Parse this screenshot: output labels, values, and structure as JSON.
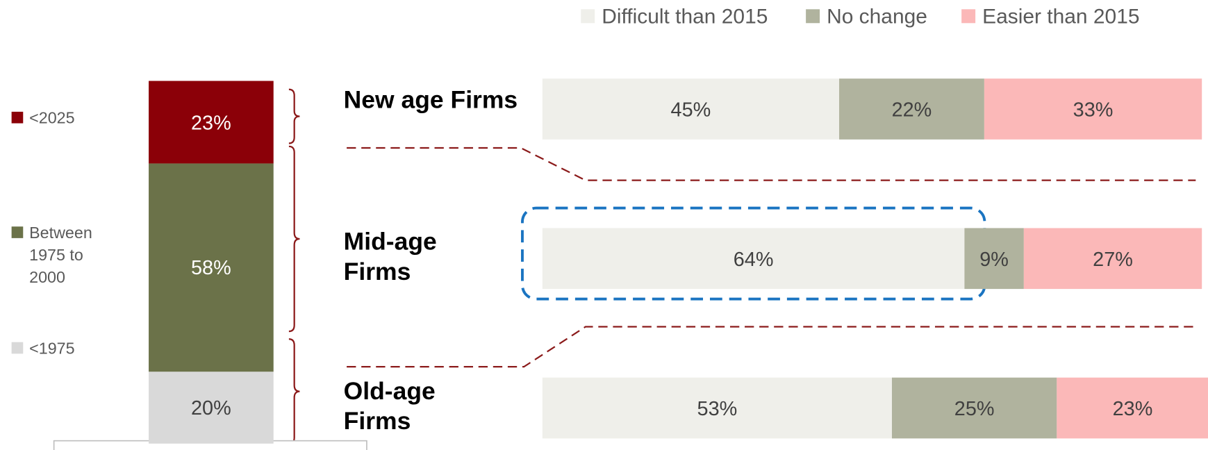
{
  "chart_data": [
    {
      "type": "stacked-column",
      "series": [
        {
          "name": "<2025",
          "color": "#8b0008",
          "values": [
            23
          ],
          "value_labels": [
            "23%"
          ]
        },
        {
          "name": "Between 1975 to 2000",
          "color": "#6b7249",
          "values": [
            58
          ],
          "value_labels": [
            "58%"
          ]
        },
        {
          "name": "<1975",
          "color": "#d9d9d9",
          "values": [
            20
          ],
          "value_labels": [
            "20%"
          ]
        }
      ]
    },
    {
      "type": "stacked-bar-h",
      "categories": [
        "New age Firms",
        "Mid-age Firms",
        "Old-age Firms"
      ],
      "series": [
        {
          "name": "Difficult than 2015",
          "color": "#efefea",
          "values": [
            45,
            64,
            53
          ],
          "value_labels": [
            "45%",
            "64%",
            "53%"
          ]
        },
        {
          "name": "No change",
          "color": "#b0b39e",
          "values": [
            22,
            9,
            25
          ],
          "value_labels": [
            "22%",
            "9%",
            "25%"
          ]
        },
        {
          "name": "Easier than 2015",
          "color": "#fbb8b8",
          "values": [
            33,
            27,
            23
          ],
          "value_labels": [
            "33%",
            "27%",
            "23%"
          ]
        }
      ]
    }
  ]
}
